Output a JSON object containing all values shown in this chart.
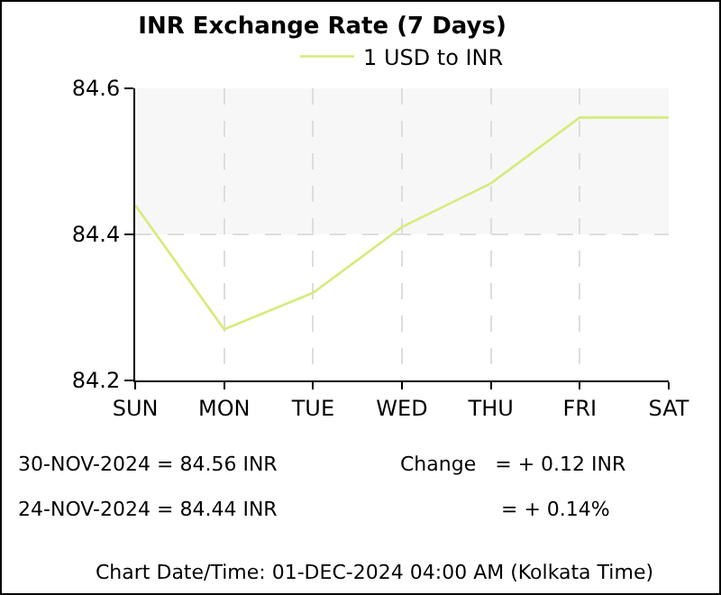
{
  "chart_data": {
    "type": "line",
    "title": "INR Exchange Rate (7 Days)",
    "categories": [
      "SUN",
      "MON",
      "TUE",
      "WED",
      "THU",
      "FRI",
      "SAT"
    ],
    "series": [
      {
        "name": "1 USD to INR",
        "color": "#d4ec7a",
        "values": [
          84.44,
          84.27,
          84.32,
          84.41,
          84.47,
          84.56,
          84.56
        ]
      }
    ],
    "ylim": [
      84.2,
      84.6
    ],
    "yticks": [
      84.2,
      84.4,
      84.6
    ],
    "grid": true,
    "legend": "top",
    "marker": "none",
    "line_style": "solid",
    "bands": [
      {
        "axis": "y",
        "from": 84.4,
        "to": 84.6,
        "color": "#f7f7f7"
      }
    ],
    "annotations": [
      "30-NOV-2024 = 84.56 INR",
      "24-NOV-2024 = 84.44 INR",
      "Change   = + 0.12 INR",
      "= + 0.14%",
      "Chart Date/Time: 01-DEC-2024 04:00 AM (Kolkata Time)"
    ]
  }
}
